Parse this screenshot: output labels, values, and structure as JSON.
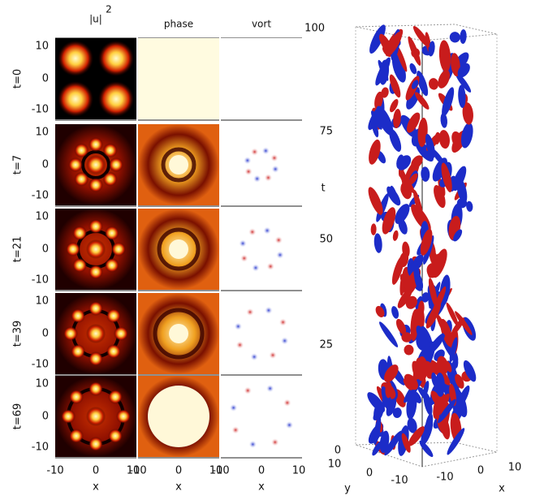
{
  "panels": {
    "column_headers": [
      "|u|",
      "phase",
      "vort"
    ],
    "header_superscript": "2",
    "row_labels": [
      "t=0",
      "t=7",
      "t=21",
      "t=39",
      "t=69"
    ],
    "y_ticks": [
      "10",
      "0",
      "-10"
    ],
    "x_ticks": [
      "-10",
      "0",
      "10"
    ],
    "x_label": "x"
  },
  "plot3d": {
    "t_ticks": [
      "100",
      "75",
      "50",
      "25",
      "0"
    ],
    "t_label": "t",
    "y_ticks": [
      "10",
      "0",
      "-10"
    ],
    "y_label": "y",
    "x_ticks": [
      "-10",
      "0",
      "10"
    ],
    "x_label": "x"
  }
}
